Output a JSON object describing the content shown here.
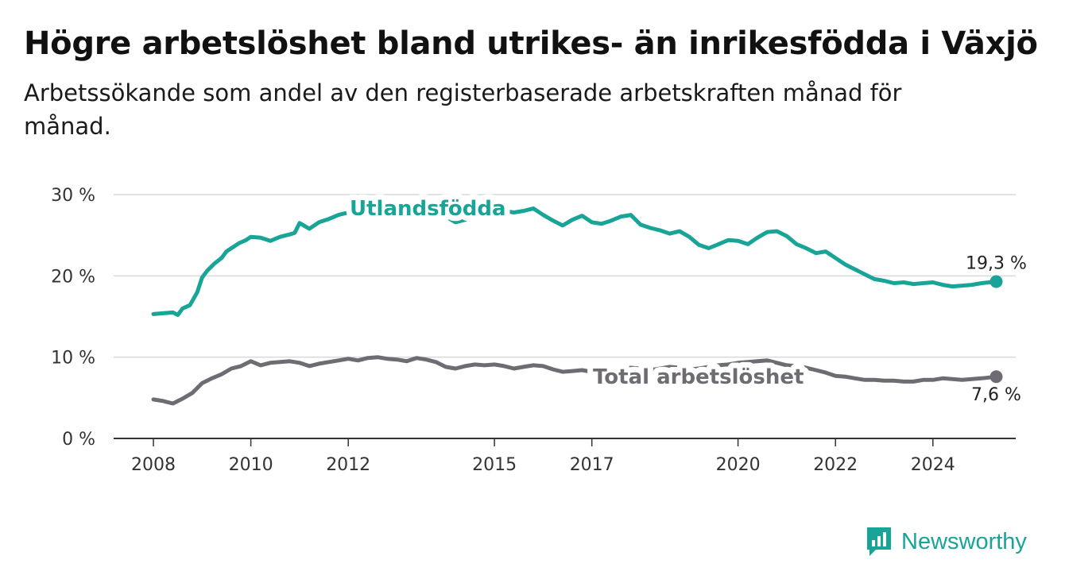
{
  "header": {
    "title": "Högre arbetslöshet bland utrikes- än inrikesfödda i Växjö",
    "subtitle": "Arbetssökande som andel av den registerbaserade arbetskraften månad för månad."
  },
  "brand": {
    "name": "Newsworthy",
    "color": "#18a497"
  },
  "chart_data": {
    "type": "line",
    "title": "Högre arbetslöshet bland utrikes- än inrikesfödda i Växjö",
    "subtitle": "Arbetssökande som andel av den registerbaserade arbetskraften månad för månad.",
    "ylim": [
      0,
      30
    ],
    "xlim": [
      2008,
      2025.4
    ],
    "y_ticks": [
      0,
      10,
      20,
      30
    ],
    "y_tick_labels": [
      "0 %",
      "10 %",
      "20 %",
      "30 %"
    ],
    "x_ticks": [
      2008,
      2010,
      2012,
      2015,
      2017,
      2020,
      2022,
      2024
    ],
    "x_tick_labels": [
      "2008",
      "2010",
      "2012",
      "2015",
      "2017",
      "2020",
      "2022",
      "2024"
    ],
    "grid": "horizontal",
    "series": [
      {
        "name": "Utlandsfödda",
        "color": "#18a497",
        "end_label": "19,3 %",
        "x": [
          2008.0,
          2008.2,
          2008.4,
          2008.5,
          2008.6,
          2008.75,
          2008.9,
          2009.0,
          2009.1,
          2009.25,
          2009.4,
          2009.5,
          2009.6,
          2009.75,
          2009.9,
          2010.0,
          2010.2,
          2010.4,
          2010.6,
          2010.8,
          2010.9,
          2011.0,
          2011.2,
          2011.4,
          2011.6,
          2011.8,
          2012.0,
          2012.2,
          2012.4,
          2012.6,
          2012.8,
          2013.0,
          2013.2,
          2013.4,
          2013.6,
          2013.8,
          2014.0,
          2014.2,
          2014.4,
          2014.6,
          2014.8,
          2015.0,
          2015.2,
          2015.4,
          2015.6,
          2015.8,
          2016.0,
          2016.2,
          2016.4,
          2016.6,
          2016.8,
          2017.0,
          2017.2,
          2017.4,
          2017.6,
          2017.8,
          2018.0,
          2018.2,
          2018.4,
          2018.6,
          2018.8,
          2019.0,
          2019.2,
          2019.4,
          2019.6,
          2019.8,
          2020.0,
          2020.2,
          2020.4,
          2020.6,
          2020.8,
          2021.0,
          2021.2,
          2021.4,
          2021.6,
          2021.8,
          2022.0,
          2022.2,
          2022.4,
          2022.6,
          2022.8,
          2023.0,
          2023.2,
          2023.4,
          2023.6,
          2023.8,
          2024.0,
          2024.2,
          2024.4,
          2024.6,
          2024.8,
          2025.0,
          2025.15,
          2025.3
        ],
        "y": [
          15.3,
          15.4,
          15.5,
          15.2,
          16.0,
          16.4,
          18.0,
          19.8,
          20.6,
          21.5,
          22.2,
          23.0,
          23.4,
          24.0,
          24.4,
          24.8,
          24.7,
          24.3,
          24.8,
          25.1,
          25.3,
          26.5,
          25.8,
          26.6,
          27.0,
          27.5,
          27.8,
          27.9,
          28.2,
          28.4,
          28.3,
          28.6,
          28.5,
          28.4,
          28.2,
          27.9,
          27.3,
          26.6,
          26.9,
          27.6,
          28.0,
          28.1,
          28.0,
          27.8,
          28.0,
          28.3,
          27.5,
          26.8,
          26.2,
          26.9,
          27.4,
          26.6,
          26.4,
          26.8,
          27.3,
          27.5,
          26.3,
          25.9,
          25.6,
          25.2,
          25.5,
          24.8,
          23.8,
          23.4,
          23.9,
          24.4,
          24.3,
          23.9,
          24.7,
          25.4,
          25.5,
          24.9,
          23.9,
          23.4,
          22.8,
          23.0,
          22.2,
          21.4,
          20.8,
          20.2,
          19.6,
          19.4,
          19.1,
          19.2,
          19.0,
          19.1,
          19.2,
          18.9,
          18.7,
          18.8,
          18.9,
          19.1,
          19.2,
          19.3
        ]
      },
      {
        "name": "Total arbetslöshet",
        "color": "#6e6c72",
        "end_label": "7,6 %",
        "x": [
          2008.0,
          2008.2,
          2008.4,
          2008.6,
          2008.8,
          2009.0,
          2009.2,
          2009.4,
          2009.6,
          2009.8,
          2010.0,
          2010.2,
          2010.4,
          2010.6,
          2010.8,
          2011.0,
          2011.2,
          2011.4,
          2011.6,
          2011.8,
          2012.0,
          2012.2,
          2012.4,
          2012.6,
          2012.8,
          2013.0,
          2013.2,
          2013.4,
          2013.6,
          2013.8,
          2014.0,
          2014.2,
          2014.4,
          2014.6,
          2014.8,
          2015.0,
          2015.2,
          2015.4,
          2015.6,
          2015.8,
          2016.0,
          2016.2,
          2016.4,
          2016.6,
          2016.8,
          2017.0,
          2017.2,
          2017.4,
          2017.6,
          2017.8,
          2018.0,
          2018.2,
          2018.4,
          2018.6,
          2018.8,
          2019.0,
          2019.2,
          2019.4,
          2019.6,
          2019.8,
          2020.0,
          2020.2,
          2020.4,
          2020.6,
          2020.8,
          2021.0,
          2021.2,
          2021.4,
          2021.6,
          2021.8,
          2022.0,
          2022.2,
          2022.4,
          2022.6,
          2022.8,
          2023.0,
          2023.2,
          2023.4,
          2023.6,
          2023.8,
          2024.0,
          2024.2,
          2024.4,
          2024.6,
          2024.8,
          2025.0,
          2025.15,
          2025.3
        ],
        "y": [
          4.8,
          4.6,
          4.3,
          4.9,
          5.6,
          6.8,
          7.4,
          7.9,
          8.6,
          8.9,
          9.5,
          9.0,
          9.3,
          9.4,
          9.5,
          9.3,
          8.9,
          9.2,
          9.4,
          9.6,
          9.8,
          9.6,
          9.9,
          10.0,
          9.8,
          9.7,
          9.5,
          9.9,
          9.7,
          9.4,
          8.8,
          8.6,
          8.9,
          9.1,
          9.0,
          9.1,
          8.9,
          8.6,
          8.8,
          9.0,
          8.9,
          8.5,
          8.2,
          8.3,
          8.4,
          8.2,
          8.1,
          8.3,
          8.5,
          8.7,
          8.6,
          8.4,
          8.6,
          8.8,
          8.7,
          8.5,
          8.6,
          8.8,
          9.0,
          9.1,
          9.3,
          9.4,
          9.5,
          9.6,
          9.3,
          9.0,
          8.9,
          8.7,
          8.4,
          8.1,
          7.7,
          7.6,
          7.4,
          7.2,
          7.2,
          7.1,
          7.1,
          7.0,
          7.0,
          7.2,
          7.2,
          7.4,
          7.3,
          7.2,
          7.3,
          7.4,
          7.5,
          7.6
        ]
      }
    ],
    "annotations": [
      {
        "text": "Utlandsfödda",
        "series": "Utlandsfödda"
      },
      {
        "text": "Total arbetslöshet",
        "series": "Total arbetslöshet"
      }
    ]
  }
}
